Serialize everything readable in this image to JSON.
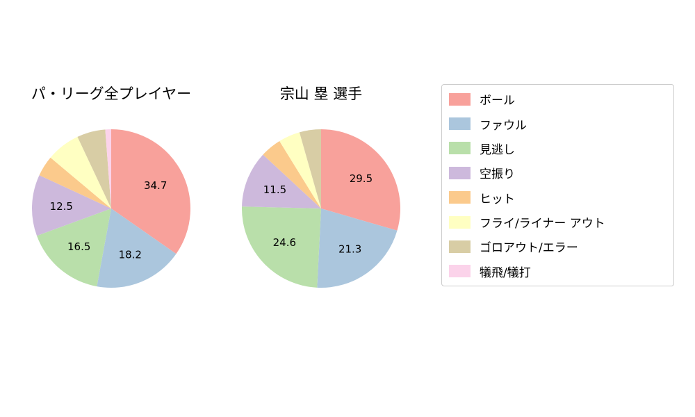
{
  "figure": {
    "background": "#ffffff"
  },
  "chart_data": [
    {
      "type": "pie",
      "title": "パ・リーグ全プレイヤー",
      "categories": [
        "ボール",
        "ファウル",
        "見逃し",
        "空振り",
        "ヒット",
        "フライ/ライナー アウト",
        "ゴロアウト/エラー",
        "犠飛/犠打"
      ],
      "values": [
        34.7,
        18.2,
        16.5,
        12.5,
        4.2,
        6.9,
        5.8,
        1.2
      ],
      "shown_labels": [
        "34.7",
        "18.2",
        "16.5",
        "12.5",
        "",
        "",
        "",
        ""
      ],
      "start_angle": "top",
      "direction": "clockwise",
      "label_distance": 0.63
    },
    {
      "type": "pie",
      "title": "宗山 塁 選手",
      "categories": [
        "ボール",
        "ファウル",
        "見逃し",
        "空振り",
        "ヒット",
        "フライ/ライナー アウト",
        "ゴロアウト/エラー",
        "犠飛/犠打"
      ],
      "values": [
        29.5,
        21.3,
        24.6,
        11.5,
        4.3,
        4.4,
        4.4,
        0
      ],
      "shown_labels": [
        "29.5",
        "21.3",
        "24.6",
        "11.5",
        "",
        "",
        "",
        ""
      ],
      "start_angle": "top",
      "direction": "clockwise",
      "label_distance": 0.63
    }
  ],
  "legend": {
    "position": "right",
    "items": [
      {
        "label": "ボール",
        "color": "#f8a19b"
      },
      {
        "label": "ファウル",
        "color": "#abc6dd"
      },
      {
        "label": "見逃し",
        "color": "#b9dfaa"
      },
      {
        "label": "空振り",
        "color": "#cdb9dc"
      },
      {
        "label": "ヒット",
        "color": "#fbca8c"
      },
      {
        "label": "フライ/ライナー アウト",
        "color": "#ffffc2"
      },
      {
        "label": "ゴロアウト/エラー",
        "color": "#d8cda5"
      },
      {
        "label": "犠飛/犠打",
        "color": "#fbd3ea"
      }
    ]
  }
}
